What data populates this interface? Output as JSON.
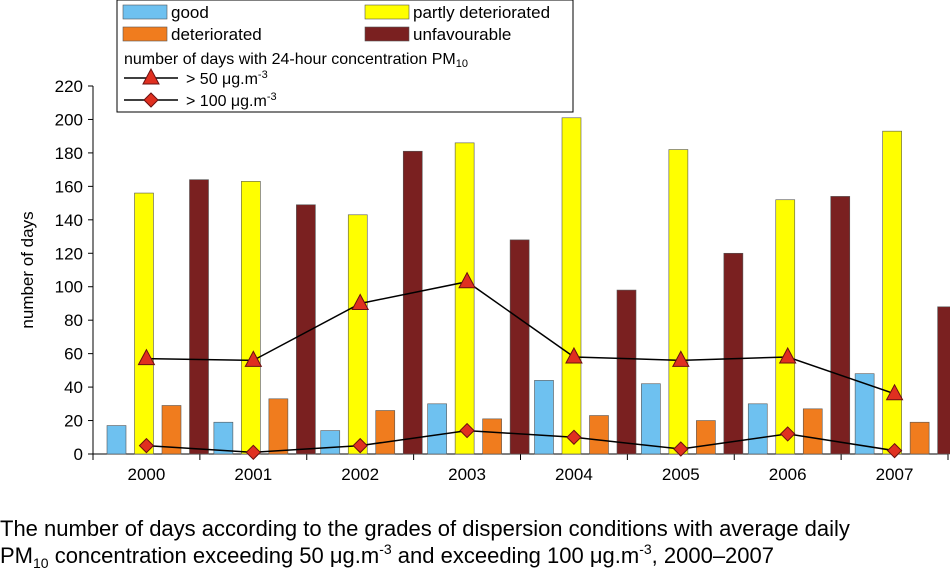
{
  "chart_data": {
    "type": "bar",
    "ylabel": "number of days",
    "ylim": [
      0,
      220
    ],
    "yticks": [
      0,
      20,
      40,
      60,
      80,
      100,
      120,
      140,
      160,
      180,
      200,
      220
    ],
    "categories": [
      "2000",
      "2001",
      "2002",
      "2003",
      "2004",
      "2005",
      "2006",
      "2007"
    ],
    "grid": false,
    "legend_position": "top",
    "series": [
      {
        "name": "good",
        "kind": "bar",
        "color": "#6ec1f0",
        "values": [
          17,
          19,
          14,
          30,
          44,
          42,
          30,
          48
        ]
      },
      {
        "name": "partly deteriorated",
        "kind": "bar",
        "color": "#ffff00",
        "values": [
          156,
          163,
          143,
          186,
          201,
          182,
          152,
          193
        ]
      },
      {
        "name": "deteriorated",
        "kind": "bar",
        "color": "#f07c1e",
        "values": [
          29,
          33,
          26,
          21,
          23,
          20,
          27,
          19
        ]
      },
      {
        "name": "unfavourable",
        "kind": "bar",
        "color": "#7a2020",
        "values": [
          164,
          149,
          181,
          128,
          98,
          120,
          154,
          88
        ]
      },
      {
        "name_parts": [
          "> 50 μg.m",
          "-3"
        ],
        "kind": "line",
        "marker": "triangle",
        "color": "#e03020",
        "values": [
          57,
          56,
          90,
          103,
          58,
          56,
          58,
          36
        ]
      },
      {
        "name_parts": [
          "> 100 μg.m",
          "-3"
        ],
        "kind": "line",
        "marker": "diamond",
        "color": "#e03020",
        "values": [
          5,
          1,
          5,
          14,
          10,
          3,
          12,
          2
        ]
      }
    ],
    "legend": {
      "line_group_title_parts": [
        "number of days with 24-hour concentration PM",
        "10"
      ]
    }
  },
  "caption": {
    "line1": "The number of days according to the grades of dispersion conditions with average daily",
    "pm": "PM",
    "pm_sub": "10",
    "mid1": " concentration exceeding 50 μg.m",
    "exp1": "-3",
    "mid2": " and exceeding 100 μg.m",
    "exp2": "-3",
    "end": ", 2000–2007"
  }
}
